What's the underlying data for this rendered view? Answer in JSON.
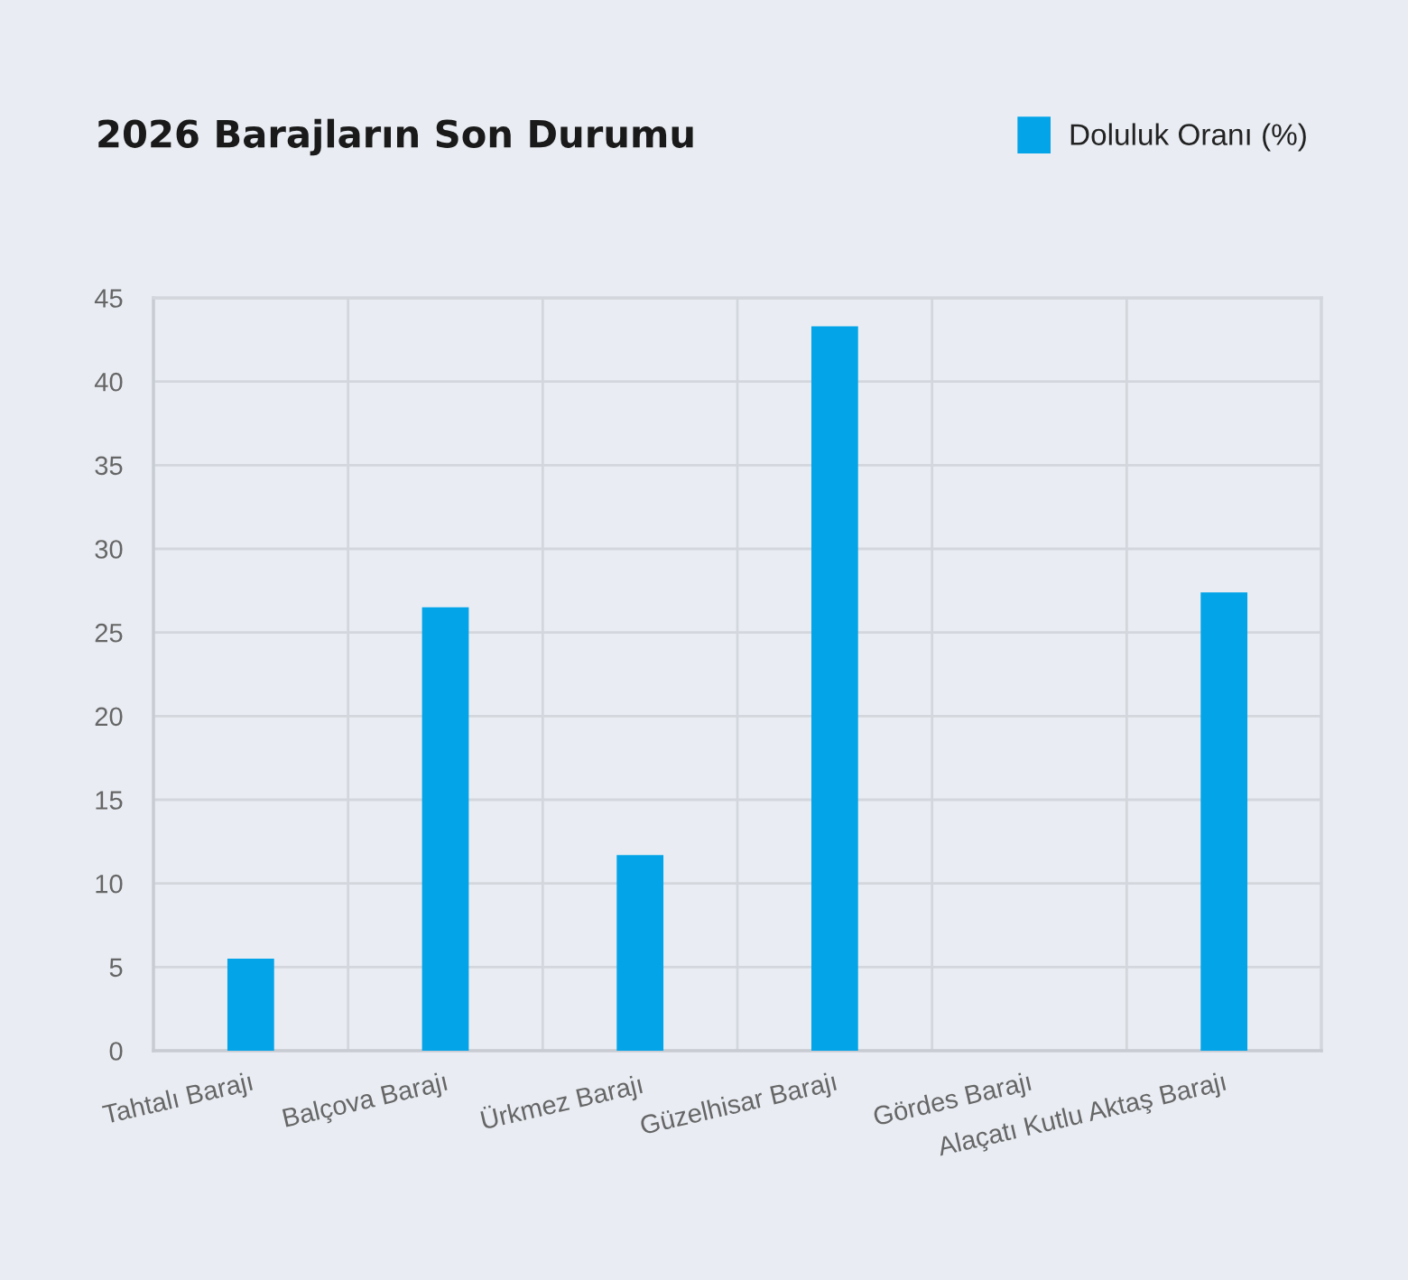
{
  "chart_data": {
    "type": "bar",
    "title": "2026 Barajların Son Durumu",
    "categories": [
      "Tahtalı Barajı",
      "Balçova Barajı",
      "Ürkmez Barajı",
      "Güzelhisar Barajı",
      "Gördes Barajı",
      "Alaçatı Kutlu Aktaş Barajı"
    ],
    "series": [
      {
        "name": "Doluluk Oranı (%)",
        "color": "#03a4e8",
        "values": [
          5.5,
          26.5,
          11.7,
          43.3,
          null,
          27.4
        ]
      }
    ],
    "ylim": [
      0,
      45
    ],
    "yticks": [
      0,
      5,
      10,
      15,
      20,
      25,
      30,
      35,
      40,
      45
    ],
    "grid": true,
    "legend": "top right"
  }
}
